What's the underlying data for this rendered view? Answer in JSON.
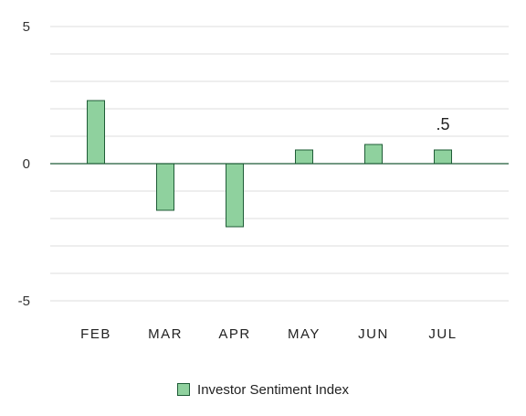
{
  "chart_data": {
    "type": "bar",
    "categories": [
      "FEB",
      "MAR",
      "APR",
      "MAY",
      "JUN",
      "JUL"
    ],
    "series": [
      {
        "name": "Investor Sentiment Index",
        "values": [
          2.3,
          -1.7,
          -2.3,
          0.5,
          0.7,
          0.5
        ]
      }
    ],
    "data_labels": [
      null,
      null,
      null,
      null,
      null,
      ".5"
    ],
    "ylim": [
      -5,
      5
    ],
    "y_ticks": [
      "5",
      "0",
      "-5"
    ],
    "grid": true,
    "legend": "bottom",
    "colors": {
      "fill": "#8fd19e",
      "stroke": "#1f5c37",
      "grid": "#dddddd",
      "zero_line": "#1f5c37"
    }
  }
}
